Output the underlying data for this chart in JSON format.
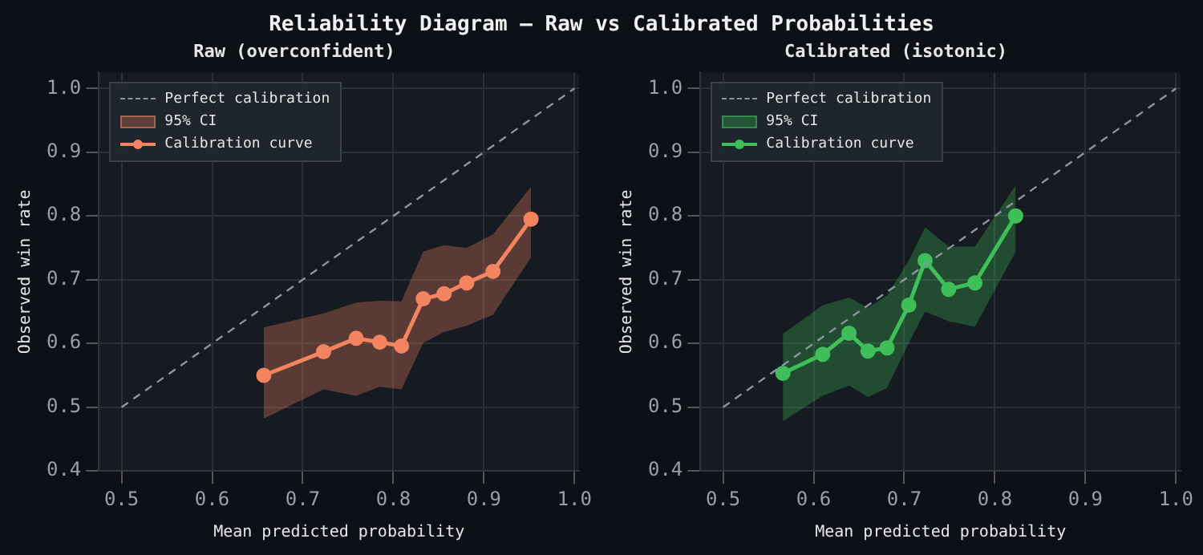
{
  "chart_data": [
    {
      "type": "line",
      "title": "Raw (overconfident)",
      "xlabel": "Mean predicted probability",
      "ylabel": "Observed win rate",
      "xlim": [
        0.475,
        1.005
      ],
      "ylim": [
        0.4,
        1.025
      ],
      "xticks": [
        0.5,
        0.6,
        0.7,
        0.8,
        0.9,
        {
          "value": 1.0,
          "label": "1.0"
        }
      ],
      "yticks": [
        0.4,
        0.5,
        0.6,
        0.7,
        0.8,
        0.9,
        {
          "value": 1.0,
          "label": "1.0"
        }
      ],
      "grid": true,
      "legend": "top left",
      "annotations": [
        "Reliability Diagram — Raw vs Calibrated Probabilities",
        "95% CI"
      ],
      "series": [
        {
          "name": "Perfect calibration",
          "color": "#8b949e",
          "line_style": "dashed",
          "marker": "none",
          "x": [
            0.5,
            1.0
          ],
          "values": [
            0.5,
            1.0
          ]
        },
        {
          "name": "Calibration curve",
          "color": "#f4845f",
          "line_style": "solid",
          "marker": "circle",
          "x": [
            0.657,
            0.723,
            0.759,
            0.785,
            0.809,
            0.833,
            0.856,
            0.881,
            0.91,
            0.952
          ],
          "values": [
            0.55,
            0.587,
            0.608,
            0.602,
            0.596,
            0.67,
            0.678,
            0.695,
            0.713,
            0.795
          ],
          "lower": [
            0.482,
            0.528,
            0.518,
            0.532,
            0.528,
            0.601,
            0.618,
            0.628,
            0.645,
            0.735
          ],
          "upper": [
            0.625,
            0.647,
            0.664,
            0.667,
            0.666,
            0.744,
            0.754,
            0.75,
            0.771,
            0.846
          ]
        }
      ]
    },
    {
      "type": "line",
      "title": "Calibrated (isotonic)",
      "xlabel": "Mean predicted probability",
      "ylabel": "Observed win rate",
      "xlim": [
        0.475,
        1.005
      ],
      "ylim": [
        0.4,
        1.025
      ],
      "xticks": [
        0.5,
        0.6,
        0.7,
        0.8,
        0.9,
        {
          "value": 1.0,
          "label": "1.0"
        }
      ],
      "yticks": [
        0.4,
        0.5,
        0.6,
        0.7,
        0.8,
        0.9,
        {
          "value": 1.0,
          "label": "1.0"
        }
      ],
      "grid": true,
      "legend": "top left",
      "annotations": [
        "95% CI"
      ],
      "series": [
        {
          "name": "Perfect calibration",
          "color": "#8b949e",
          "line_style": "dashed",
          "marker": "none",
          "x": [
            0.5,
            1.0
          ],
          "values": [
            0.5,
            1.0
          ]
        },
        {
          "name": "Calibration curve",
          "color": "#3fbf5a",
          "line_style": "solid",
          "marker": "circle",
          "x": [
            0.566,
            0.61,
            0.639,
            0.66,
            0.681,
            0.705,
            0.723,
            0.749,
            0.778,
            0.823
          ],
          "values": [
            0.553,
            0.583,
            0.616,
            0.588,
            0.593,
            0.66,
            0.73,
            0.685,
            0.695,
            0.8
          ],
          "lower": [
            0.478,
            0.518,
            0.534,
            0.516,
            0.53,
            0.601,
            0.65,
            0.635,
            0.626,
            0.744
          ],
          "upper": [
            0.615,
            0.66,
            0.672,
            0.656,
            0.675,
            0.73,
            0.782,
            0.752,
            0.752,
            0.848
          ]
        }
      ]
    }
  ]
}
